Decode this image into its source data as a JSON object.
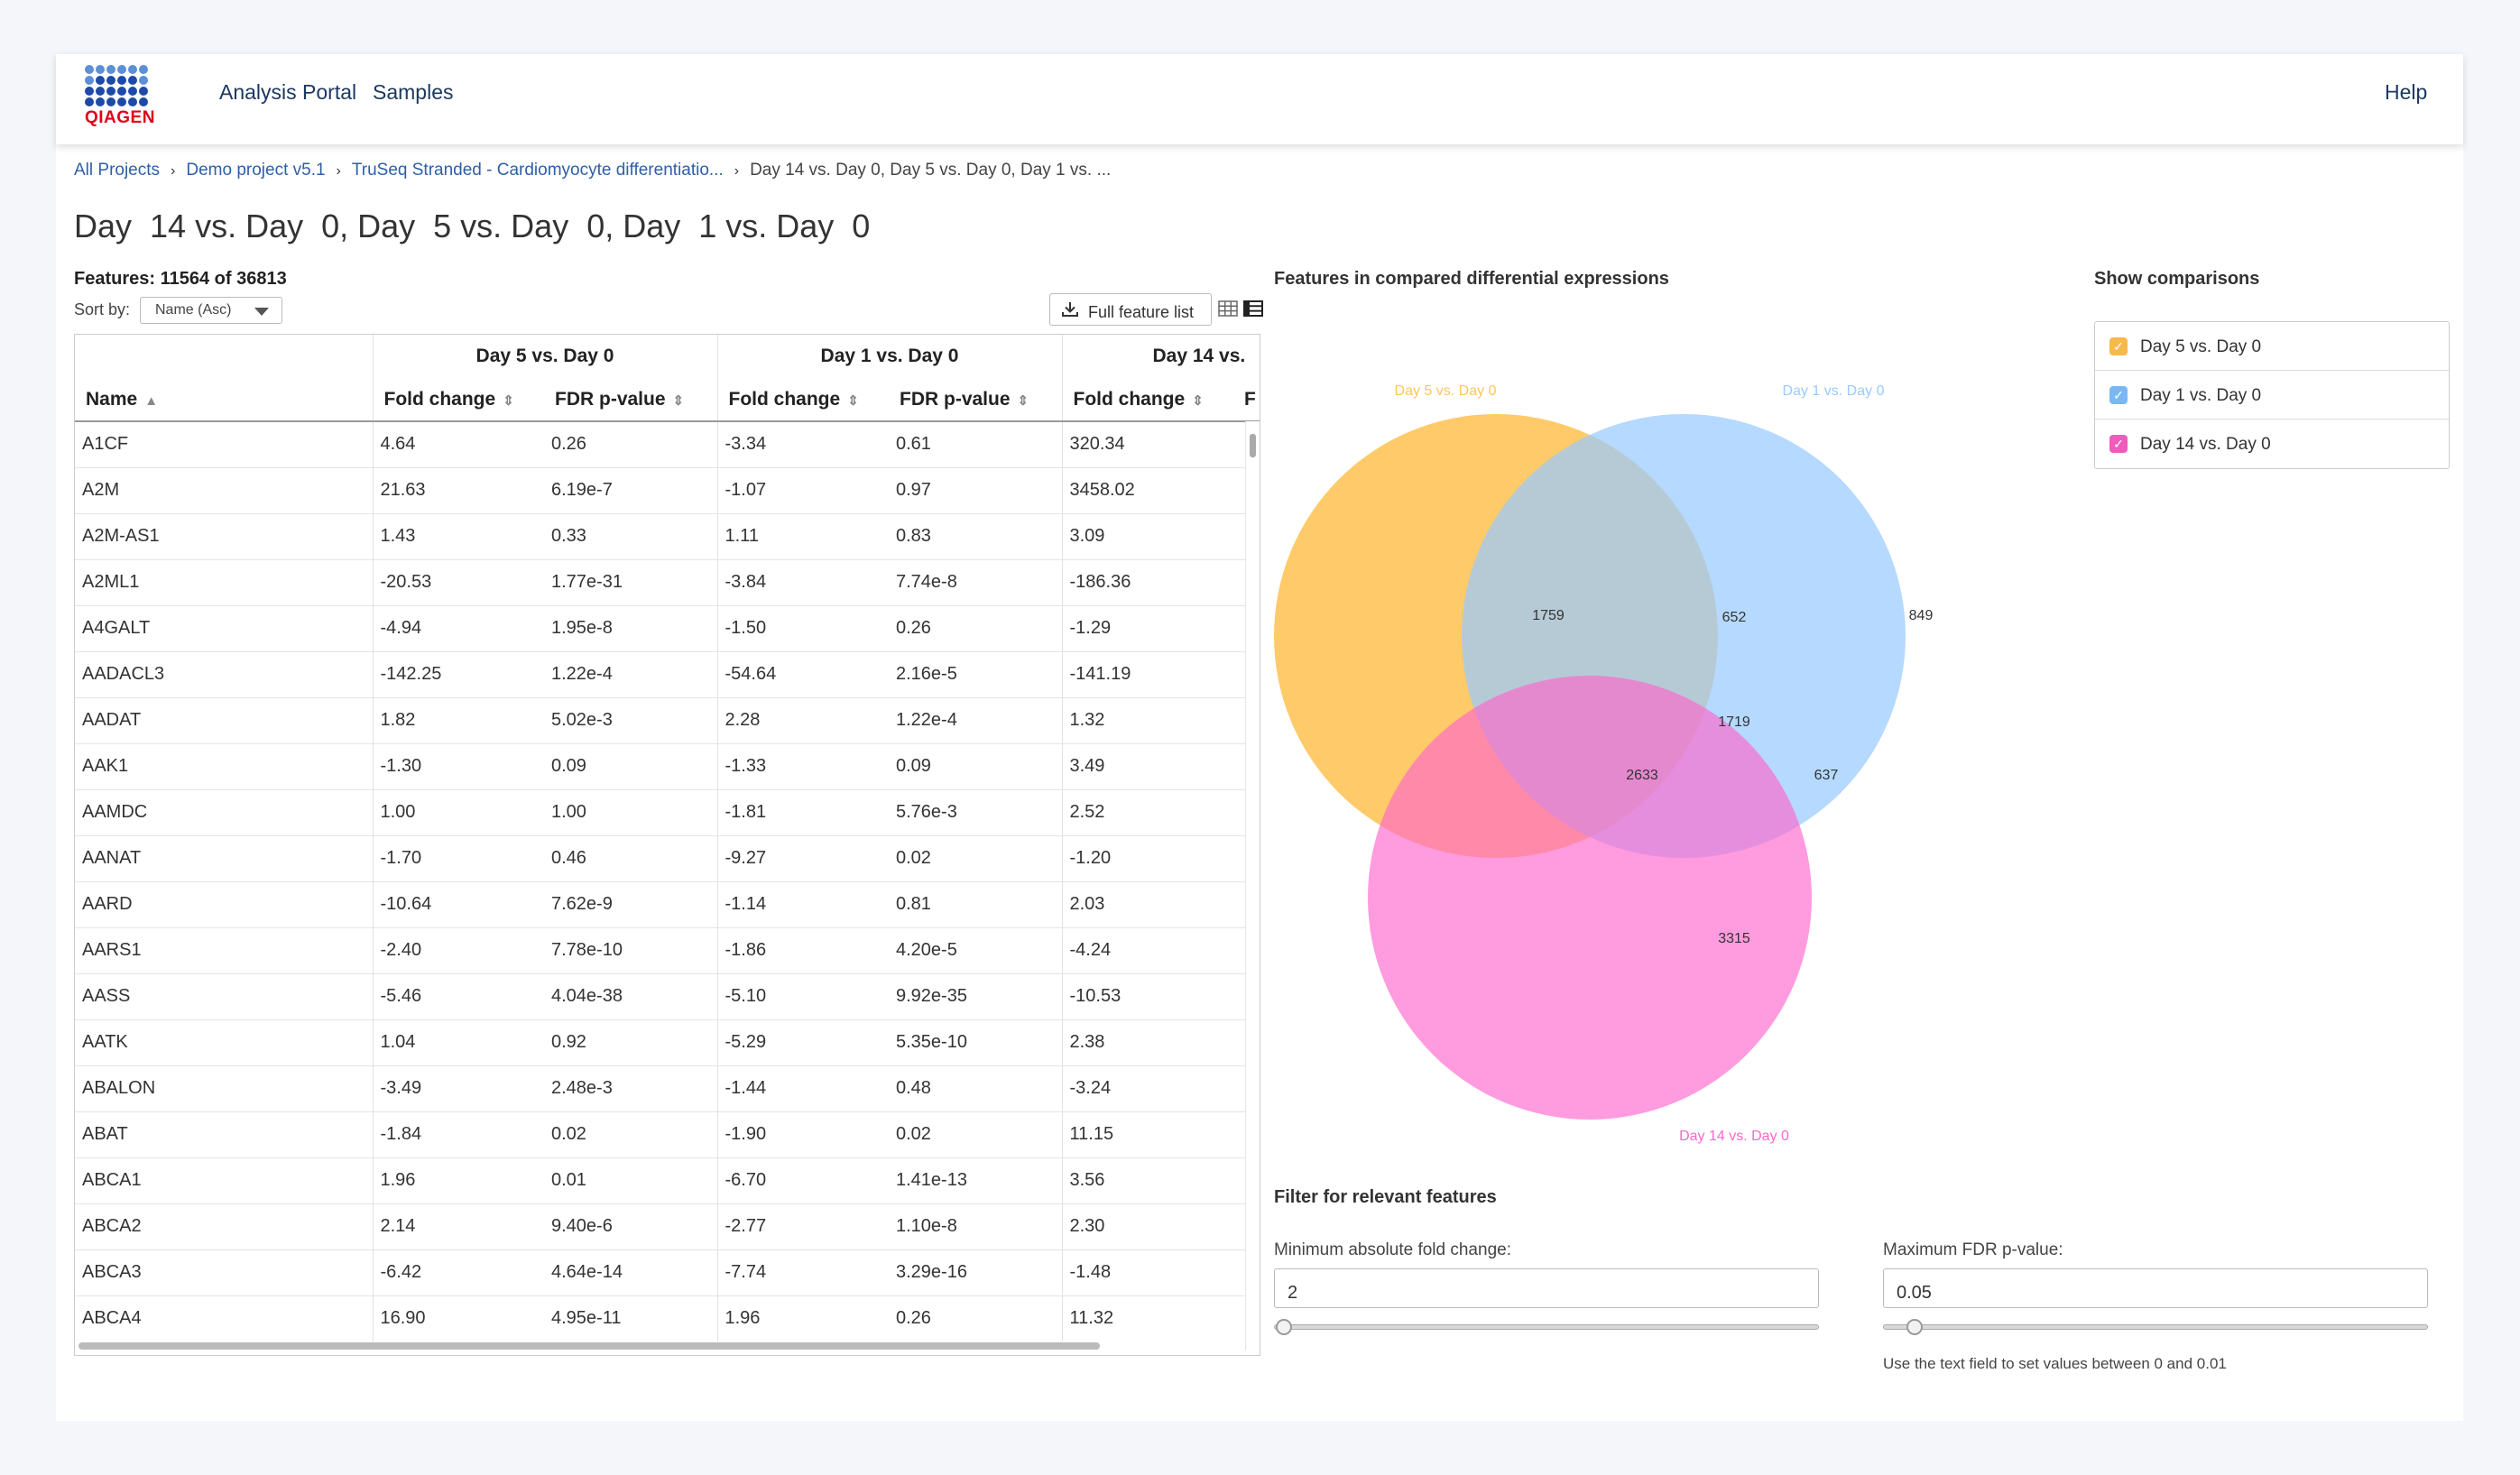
{
  "header": {
    "logo_text": "QIAGEN",
    "nav": [
      "Analysis Portal",
      "Samples"
    ],
    "help": "Help"
  },
  "breadcrumb": {
    "items": [
      "All Projects",
      "Demo project v5.1",
      "TruSeq Stranded - Cardiomyocyte differentiatio...",
      "Day 14 vs. Day 0, Day 5 vs. Day 0, Day 1 vs. ..."
    ],
    "separator": "›"
  },
  "page_title": "Day  14 vs. Day  0, Day  5 vs. Day  0, Day  1 vs. Day  0",
  "table_panel": {
    "features_count": "Features: 11564 of 36813",
    "sort_label": "Sort by:",
    "sort_value": "Name (Asc)",
    "full_feature_label": "Full feature list",
    "icons": {
      "download": "download-icon",
      "grid": "grid-view-icon",
      "list": "list-view-icon"
    },
    "groups": [
      "Day 5 vs. Day 0",
      "Day 1 vs. Day 0",
      "Day 14 vs."
    ],
    "columns": {
      "name": "Name",
      "fold": "Fold change",
      "fdr": "FDR p-value",
      "fdr_trunc": "F"
    },
    "rows": [
      [
        "A1CF",
        "4.64",
        "0.26",
        "-3.34",
        "0.61",
        "320.34"
      ],
      [
        "A2M",
        "21.63",
        "6.19e-7",
        "-1.07",
        "0.97",
        "3458.02"
      ],
      [
        "A2M-AS1",
        "1.43",
        "0.33",
        "1.11",
        "0.83",
        "3.09"
      ],
      [
        "A2ML1",
        "-20.53",
        "1.77e-31",
        "-3.84",
        "7.74e-8",
        "-186.36"
      ],
      [
        "A4GALT",
        "-4.94",
        "1.95e-8",
        "-1.50",
        "0.26",
        "-1.29"
      ],
      [
        "AADACL3",
        "-142.25",
        "1.22e-4",
        "-54.64",
        "2.16e-5",
        "-141.19"
      ],
      [
        "AADAT",
        "1.82",
        "5.02e-3",
        "2.28",
        "1.22e-4",
        "1.32"
      ],
      [
        "AAK1",
        "-1.30",
        "0.09",
        "-1.33",
        "0.09",
        "3.49"
      ],
      [
        "AAMDC",
        "1.00",
        "1.00",
        "-1.81",
        "5.76e-3",
        "2.52"
      ],
      [
        "AANAT",
        "-1.70",
        "0.46",
        "-9.27",
        "0.02",
        "-1.20"
      ],
      [
        "AARD",
        "-10.64",
        "7.62e-9",
        "-1.14",
        "0.81",
        "2.03"
      ],
      [
        "AARS1",
        "-2.40",
        "7.78e-10",
        "-1.86",
        "4.20e-5",
        "-4.24"
      ],
      [
        "AASS",
        "-5.46",
        "4.04e-38",
        "-5.10",
        "9.92e-35",
        "-10.53"
      ],
      [
        "AATK",
        "1.04",
        "0.92",
        "-5.29",
        "5.35e-10",
        "2.38"
      ],
      [
        "ABALON",
        "-3.49",
        "2.48e-3",
        "-1.44",
        "0.48",
        "-3.24"
      ],
      [
        "ABAT",
        "-1.84",
        "0.02",
        "-1.90",
        "0.02",
        "11.15"
      ],
      [
        "ABCA1",
        "1.96",
        "0.01",
        "-6.70",
        "1.41e-13",
        "3.56"
      ],
      [
        "ABCA2",
        "2.14",
        "9.40e-6",
        "-2.77",
        "1.10e-8",
        "2.30"
      ],
      [
        "ABCA3",
        "-6.42",
        "4.64e-14",
        "-7.74",
        "3.29e-16",
        "-1.48"
      ],
      [
        "ABCA4",
        "16.90",
        "4.95e-11",
        "1.96",
        "0.26",
        "11.32"
      ]
    ]
  },
  "venn": {
    "title": "Features in compared differential expressions",
    "sets": [
      {
        "label": "Day  5 vs. Day  0",
        "color": "#ffc65c"
      },
      {
        "label": "Day  1 vs. Day  0",
        "color": "#99cbff"
      },
      {
        "label": "Day  14 vs. Day  0",
        "color": "#ff66cc"
      }
    ],
    "counts": {
      "only_a": "1759",
      "a_b": "652",
      "only_b": "849",
      "all": "1719",
      "a_c": "2633",
      "b_c": "637",
      "only_c": "3315"
    }
  },
  "comparisons": {
    "title": "Show comparisons",
    "items": [
      {
        "label": "Day 5 vs. Day 0",
        "color": "#f7b94c"
      },
      {
        "label": "Day 1 vs. Day 0",
        "color": "#7ab8f5"
      },
      {
        "label": "Day 14 vs. Day 0",
        "color": "#f15bbd"
      }
    ],
    "check_glyph": "✓"
  },
  "filter": {
    "title": "Filter for relevant features",
    "fold_label": "Minimum absolute fold change:",
    "fold_value": "2",
    "fdr_label": "Maximum FDR p-value:",
    "fdr_value": "0.05",
    "hint": "Use the text field to set values between 0 and 0.01"
  }
}
